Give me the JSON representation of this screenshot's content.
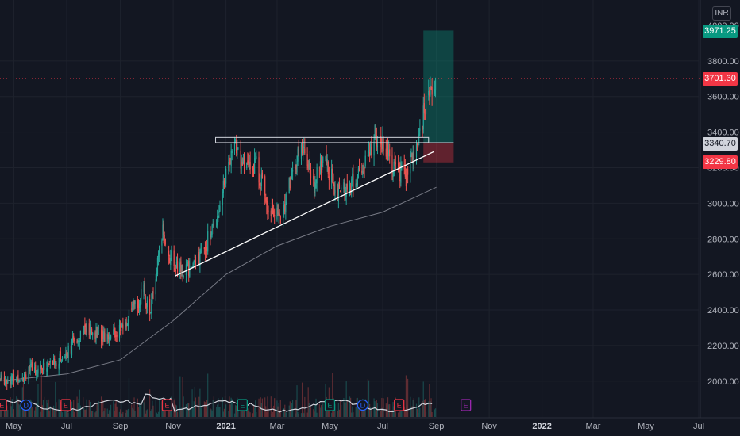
{
  "currency": "INR",
  "price_labels": {
    "target": "3971.25",
    "last": "3701.30",
    "entry": "3340.70",
    "stop": "3229.80"
  },
  "chart_data": {
    "type": "candlestick",
    "y_ticks": [
      "3800.00",
      "3600.00",
      "3400.00",
      "3200.00",
      "3000.00",
      "2800.00",
      "2600.00",
      "2400.00",
      "2200.00",
      "2000.00"
    ],
    "y_top_partial": "4000.00",
    "ylim": [
      1880,
      4000
    ],
    "x_ticks": [
      "May",
      "Jul",
      "Sep",
      "Nov",
      "2021",
      "Mar",
      "May",
      "Jul",
      "Sep",
      "Nov",
      "2022",
      "Mar",
      "May",
      "Jul"
    ],
    "bold_x_ticks": [
      "2021",
      "2022"
    ],
    "price_path": [
      [
        "2020-04-15",
        2010
      ],
      [
        "2020-05-01",
        2015
      ],
      [
        "2020-05-20",
        2060
      ],
      [
        "2020-06-10",
        2090
      ],
      [
        "2020-06-25",
        2130
      ],
      [
        "2020-07-10",
        2220
      ],
      [
        "2020-07-20",
        2300
      ],
      [
        "2020-08-01",
        2270
      ],
      [
        "2020-08-20",
        2260
      ],
      [
        "2020-09-05",
        2300
      ],
      [
        "2020-09-15",
        2400
      ],
      [
        "2020-09-28",
        2500
      ],
      [
        "2020-10-05",
        2380
      ],
      [
        "2020-10-12",
        2580
      ],
      [
        "2020-10-20",
        2850
      ],
      [
        "2020-10-28",
        2700
      ],
      [
        "2020-11-08",
        2620
      ],
      [
        "2020-11-20",
        2640
      ],
      [
        "2020-12-05",
        2720
      ],
      [
        "2020-12-20",
        2900
      ],
      [
        "2021-01-05",
        3250
      ],
      [
        "2021-01-12",
        3320
      ],
      [
        "2021-01-22",
        3200
      ],
      [
        "2021-02-05",
        3220
      ],
      [
        "2021-02-18",
        3000
      ],
      [
        "2021-03-05",
        2900
      ],
      [
        "2021-03-20",
        3200
      ],
      [
        "2021-04-01",
        3330
      ],
      [
        "2021-04-12",
        3100
      ],
      [
        "2021-04-25",
        3250
      ],
      [
        "2021-05-10",
        3050
      ],
      [
        "2021-05-25",
        3100
      ],
      [
        "2021-06-10",
        3200
      ],
      [
        "2021-06-22",
        3380
      ],
      [
        "2021-07-05",
        3300
      ],
      [
        "2021-07-15",
        3180
      ],
      [
        "2021-07-28",
        3150
      ],
      [
        "2021-08-08",
        3300
      ],
      [
        "2021-08-18",
        3520
      ],
      [
        "2021-08-26",
        3660
      ],
      [
        "2021-08-31",
        3701.3
      ]
    ],
    "moving_average": [
      [
        "2020-04-15",
        2000
      ],
      [
        "2020-07-01",
        2040
      ],
      [
        "2020-09-01",
        2120
      ],
      [
        "2020-11-01",
        2340
      ],
      [
        "2021-01-01",
        2600
      ],
      [
        "2021-03-01",
        2760
      ],
      [
        "2021-05-01",
        2870
      ],
      [
        "2021-07-01",
        2950
      ],
      [
        "2021-09-01",
        3090
      ]
    ],
    "resistance_zone": {
      "from_date": "2020-12-20",
      "to_date": "2021-08-23",
      "low": 3340.7,
      "high": 3370
    },
    "trendline": {
      "from": [
        "2020-11-03",
        2590
      ],
      "to": [
        "2021-08-29",
        3290
      ]
    },
    "position": {
      "from_date": "2021-08-17",
      "to_date": "2021-09-21",
      "entry": 3340.7,
      "target": 3971.25,
      "stop": 3229.8
    },
    "events": [
      {
        "date": "2020-04-17",
        "type": "E",
        "color": "#f23645"
      },
      {
        "date": "2020-05-15",
        "type": "D",
        "color": "#2962ff"
      },
      {
        "date": "2020-06-30",
        "type": "E",
        "color": "#f23645"
      },
      {
        "date": "2020-10-25",
        "type": "E",
        "color": "#f23645"
      },
      {
        "date": "2021-01-20",
        "type": "E",
        "color": "#089981"
      },
      {
        "date": "2021-05-01",
        "type": "E",
        "color": "#089981"
      },
      {
        "date": "2021-06-08",
        "type": "D",
        "color": "#2962ff"
      },
      {
        "date": "2021-07-20",
        "type": "E",
        "color": "#f23645"
      },
      {
        "date": "2021-10-05",
        "type": "E",
        "color": "#9c27b0"
      }
    ]
  }
}
